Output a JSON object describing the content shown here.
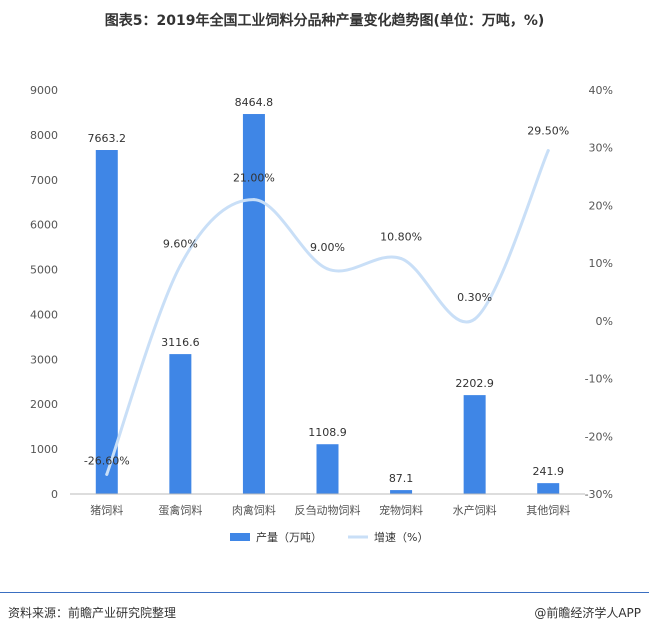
{
  "header": {
    "title": "图表5：2019年全国工业饲料分品种产量变化趋势图(单位：万吨，%)"
  },
  "footer": {
    "source": "资料来源：前瞻产业研究院整理",
    "credit": "@前瞻经济学人APP"
  },
  "colors": {
    "bar": "#3f86e6",
    "line": "#c9dff7",
    "axis": "#bbbbbb",
    "footer_rule": "#3a6fc1"
  },
  "chart_data": {
    "type": "bar",
    "title": "图表5：2019年全国工业饲料分品种产量变化趋势图(单位：万吨，%)",
    "categories": [
      "猪饲料",
      "蛋禽饲料",
      "肉禽饲料",
      "反刍动物饲料",
      "宠物饲料",
      "水产饲料",
      "其他饲料"
    ],
    "series": [
      {
        "name": "产量（万吨）",
        "type": "bar",
        "axis": "left",
        "values": [
          7663.2,
          3116.6,
          8464.8,
          1108.9,
          87.1,
          2202.9,
          241.9
        ],
        "labels": [
          "7663.2",
          "3116.6",
          "8464.8",
          "1108.9",
          "87.1",
          "2202.9",
          "241.9"
        ]
      },
      {
        "name": "增速（%）",
        "type": "line",
        "smooth": true,
        "axis": "right",
        "values": [
          -26.6,
          9.6,
          21.0,
          9.0,
          10.8,
          0.3,
          29.5
        ],
        "labels": [
          "-26.60%",
          "9.60%",
          "21.00%",
          "9.00%",
          "10.80%",
          "0.30%",
          "29.50%"
        ]
      }
    ],
    "y_left": {
      "min": 0,
      "max": 9000,
      "ticks": [
        "0",
        "1000",
        "2000",
        "3000",
        "4000",
        "5000",
        "6000",
        "7000",
        "8000",
        "9000"
      ]
    },
    "y_right": {
      "min": -30,
      "max": 40,
      "ticks": [
        "-30%",
        "-20%",
        "-10%",
        "0%",
        "10%",
        "20%",
        "30%",
        "40%"
      ]
    },
    "legend": {
      "position": "bottom",
      "items": [
        "产量（万吨）",
        "增速（%）"
      ]
    },
    "grid": false
  }
}
